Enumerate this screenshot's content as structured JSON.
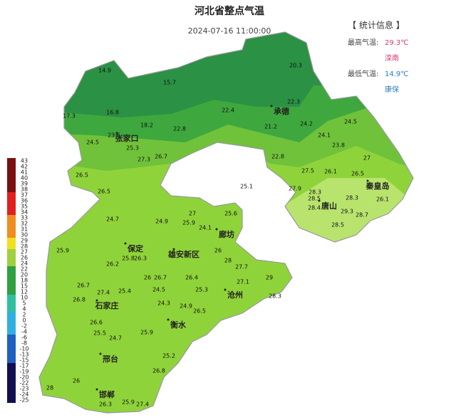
{
  "header": {
    "title": "河北省整点气温",
    "time": "2024-07-16 11:00:00"
  },
  "stats": {
    "heading": "【 统计信息 】",
    "max_label": "最高气温:",
    "max_value": "29.3℃",
    "max_station": "滦南",
    "min_label": "最低气温:",
    "min_value": "14.9℃",
    "min_station": "康保"
  },
  "cities": [
    "张家口",
    "承德",
    "秦皇岛",
    "唐山",
    "廊坊",
    "保定",
    "雄安新区",
    "沧州",
    "石家庄",
    "衡水",
    "邢台",
    "邯郸"
  ],
  "stations": [
    14.9,
    15.7,
    20.3,
    17.3,
    16.8,
    18.2,
    22.4,
    22.3,
    21.2,
    22.8,
    23.5,
    24.5,
    25.3,
    24.2,
    24.1,
    24.5,
    23.8,
    27.3,
    26.7,
    22.8,
    27.0,
    27.5,
    26.1,
    26.5,
    26.5,
    26.5,
    25.1,
    27.9,
    28.3,
    28.5,
    28.3,
    26.1,
    28.4,
    29.3,
    28.7,
    28.5,
    24.7,
    24.9,
    27.0,
    25.9,
    25.6,
    24.1,
    25.9,
    26.2,
    25.8,
    26.3,
    26.0,
    26.7,
    26.4,
    26.0,
    28.0,
    27.7,
    29.0,
    27.1,
    26.7,
    27.4,
    26.8,
    25.4,
    24.5,
    25.3,
    28.3,
    24.3,
    24.9,
    26.5,
    26.6,
    25.5,
    24.7,
    25.9,
    25.2,
    26.8,
    28.0,
    26.0,
    26.3,
    25.9,
    27.4
  ],
  "legend": {
    "ticks": [
      43,
      42,
      41,
      40,
      39,
      38,
      37,
      36,
      35,
      34,
      33,
      32,
      31,
      30,
      29,
      28,
      27,
      26,
      24,
      22,
      20,
      18,
      15,
      12,
      10,
      5,
      4,
      2,
      0,
      -2,
      -4,
      -6,
      -8,
      -10,
      -13,
      -15,
      -17,
      -19,
      -20,
      -22,
      -23,
      -24,
      -25
    ]
  }
}
